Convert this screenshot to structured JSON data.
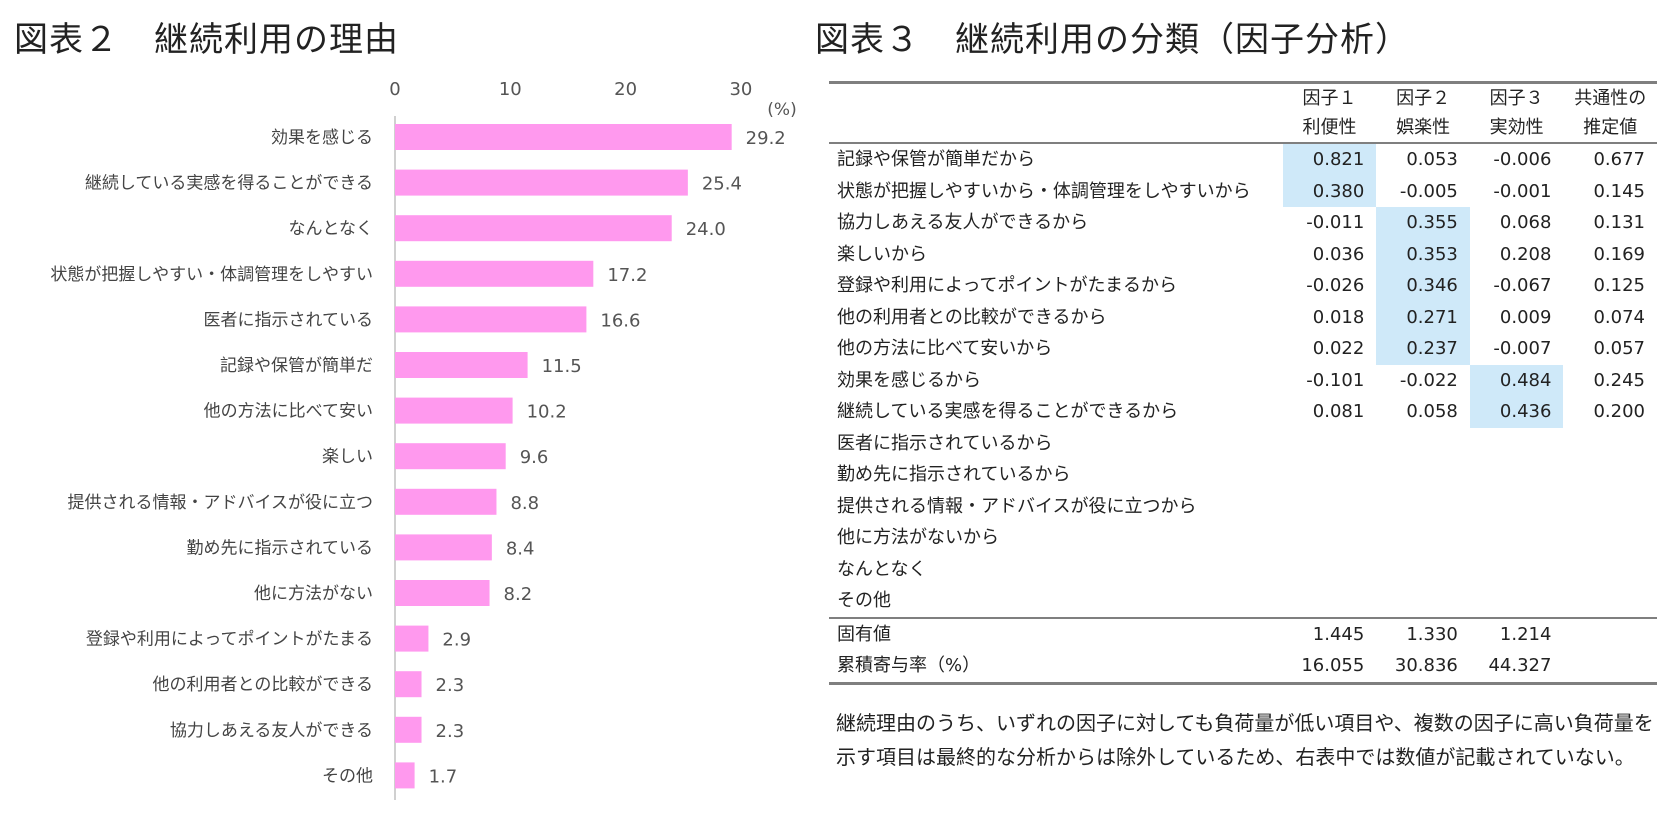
{
  "figure2": {
    "title": "図表２　継続利用の理由"
  },
  "figure3": {
    "title": "図表３　継続利用の分類（因子分析）"
  },
  "chart_data": {
    "type": "bar",
    "orientation": "horizontal",
    "title": "図表２　継続利用の理由",
    "unit": "(%)",
    "xlim": [
      0,
      30
    ],
    "ticks": [
      0,
      10,
      20,
      30
    ],
    "grid": false,
    "bar_color": "#ff99ee",
    "categories": [
      "効果を感じる",
      "継続している実感を得ることができる",
      "なんとなく",
      "状態が把握しやすい・体調管理をしやすい",
      "医者に指示されている",
      "記録や保管が簡単だ",
      "他の方法に比べて安い",
      "楽しい",
      "提供される情報・アドバイスが役に立つ",
      "勤め先に指示されている",
      "他に方法がない",
      "登録や利用によってポイントがたまる",
      "他の利用者との比較ができる",
      "協力しあえる友人ができる",
      "その他"
    ],
    "values": [
      29.2,
      25.4,
      24.0,
      17.2,
      16.6,
      11.5,
      10.2,
      9.6,
      8.8,
      8.4,
      8.2,
      2.9,
      2.3,
      2.3,
      1.7
    ],
    "value_labels": [
      "29.2",
      "25.4",
      "24.0",
      "17.2",
      "16.6",
      "11.5",
      "10.2",
      "9.6",
      "8.8",
      "8.4",
      "8.2",
      "2.9",
      "2.3",
      "2.3",
      "1.7"
    ]
  },
  "table": {
    "headers": [
      {
        "line1": "因子１",
        "line2": "利便性"
      },
      {
        "line1": "因子２",
        "line2": "娯楽性"
      },
      {
        "line1": "因子３",
        "line2": "実効性"
      },
      {
        "line1": "共通性の",
        "line2": "推定値"
      }
    ],
    "highlight_color": "#cfe9f9",
    "rows": [
      {
        "label": "記録や保管が簡単だから",
        "values": [
          "0.821",
          "0.053",
          "-0.006",
          "0.677"
        ],
        "highlight": 0
      },
      {
        "label": "状態が把握しやすいから・体調管理をしやすいから",
        "values": [
          "0.380",
          "-0.005",
          "-0.001",
          "0.145"
        ],
        "highlight": 0
      },
      {
        "label": "協力しあえる友人ができるから",
        "values": [
          "-0.011",
          "0.355",
          "0.068",
          "0.131"
        ],
        "highlight": 1
      },
      {
        "label": "楽しいから",
        "values": [
          "0.036",
          "0.353",
          "0.208",
          "0.169"
        ],
        "highlight": 1
      },
      {
        "label": "登録や利用によってポイントがたまるから",
        "values": [
          "-0.026",
          "0.346",
          "-0.067",
          "0.125"
        ],
        "highlight": 1
      },
      {
        "label": "他の利用者との比較ができるから",
        "values": [
          "0.018",
          "0.271",
          "0.009",
          "0.074"
        ],
        "highlight": 1
      },
      {
        "label": "他の方法に比べて安いから",
        "values": [
          "0.022",
          "0.237",
          "-0.007",
          "0.057"
        ],
        "highlight": 1
      },
      {
        "label": "効果を感じるから",
        "values": [
          "-0.101",
          "-0.022",
          "0.484",
          "0.245"
        ],
        "highlight": 2
      },
      {
        "label": "継続している実感を得ることができるから",
        "values": [
          "0.081",
          "0.058",
          "0.436",
          "0.200"
        ],
        "highlight": 2
      },
      {
        "label": "医者に指示されているから",
        "values": [
          "",
          "",
          "",
          ""
        ],
        "highlight": -1
      },
      {
        "label": "勤め先に指示されているから",
        "values": [
          "",
          "",
          "",
          ""
        ],
        "highlight": -1
      },
      {
        "label": "提供される情報・アドバイスが役に立つから",
        "values": [
          "",
          "",
          "",
          ""
        ],
        "highlight": -1
      },
      {
        "label": "他に方法がないから",
        "values": [
          "",
          "",
          "",
          ""
        ],
        "highlight": -1
      },
      {
        "label": "なんとなく",
        "values": [
          "",
          "",
          "",
          ""
        ],
        "highlight": -1
      },
      {
        "label": "その他",
        "values": [
          "",
          "",
          "",
          ""
        ],
        "highlight": -1
      }
    ],
    "footer": [
      {
        "label": "固有値",
        "values": [
          "1.445",
          "1.330",
          "1.214",
          ""
        ]
      },
      {
        "label": "累積寄与率（%）",
        "values": [
          "16.055",
          "30.836",
          "44.327",
          ""
        ]
      }
    ]
  },
  "note": "継続理由のうち、いずれの因子に対しても負荷量が低い項目や、複数の因子に高い負荷量を示す項目は最終的な分析からは除外しているため、右表中では数値が記載されていない。"
}
